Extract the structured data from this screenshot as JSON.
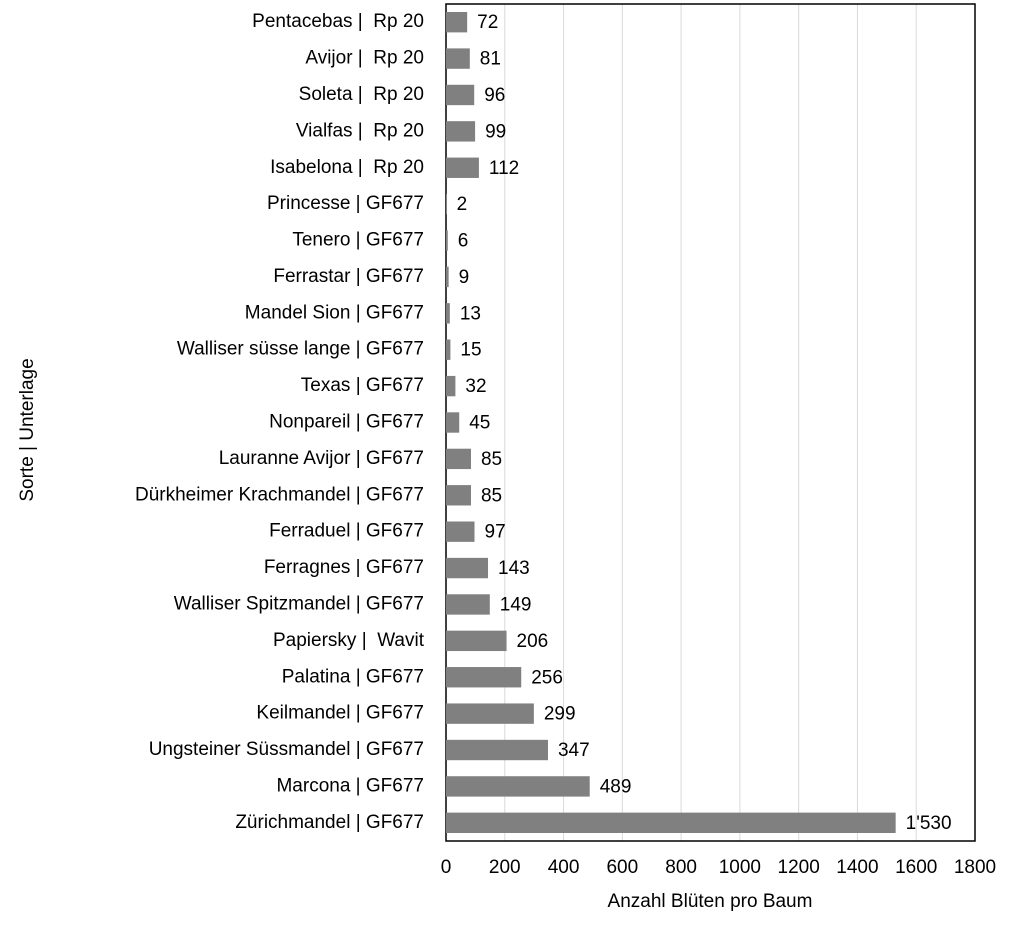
{
  "chart_data": {
    "type": "barh",
    "categories": [
      "Pentacebas |  Rp 20",
      "Avijor |  Rp 20",
      "Soleta |  Rp 20",
      "Vialfas |  Rp 20",
      "Isabelona |  Rp 20",
      "Princesse | GF677",
      "Tenero | GF677",
      "Ferrastar | GF677",
      "Mandel Sion | GF677",
      "Walliser süsse lange | GF677",
      "Texas | GF677",
      "Nonpareil | GF677",
      "Lauranne Avijor | GF677",
      "Dürkheimer Krachmandel | GF677",
      "Ferraduel | GF677",
      "Ferragnes | GF677",
      "Walliser Spitzmandel | GF677",
      "Papiersky |  Wavit",
      "Palatina | GF677",
      "Keilmandel | GF677",
      "Ungsteiner Süssmandel | GF677",
      "Marcona | GF677",
      "Zürichmandel | GF677"
    ],
    "values": [
      72,
      81,
      96,
      99,
      112,
      2,
      6,
      9,
      13,
      15,
      32,
      45,
      85,
      85,
      97,
      143,
      149,
      206,
      256,
      299,
      347,
      489,
      1530
    ],
    "value_labels": [
      "72",
      "81",
      "96",
      "99",
      "112",
      "2",
      "6",
      "9",
      "13",
      "15",
      "32",
      "45",
      "85",
      "85",
      "97",
      "143",
      "149",
      "206",
      "256",
      "299",
      "347",
      "489",
      "1'530"
    ],
    "color": "#808080",
    "xlim": [
      0,
      1800
    ],
    "xticks": [
      0,
      200,
      400,
      600,
      800,
      1000,
      1200,
      1400,
      1600,
      1800
    ],
    "grid": true,
    "xlabel": "Anzahl Blüten pro Baum",
    "ylabel": "Sorte | Unterlage"
  }
}
